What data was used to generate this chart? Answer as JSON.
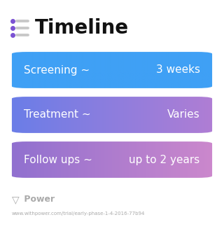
{
  "title": "Timeline",
  "title_fontsize": 20,
  "title_fontweight": "bold",
  "background_color": "#ffffff",
  "icon_line_color": "#7b52d3",
  "icon_bar_color": "#c8c8c8",
  "rows": [
    {
      "label": "Screening ~",
      "value": "3 weeks",
      "color_left": "#3fa0f5",
      "color_right": "#3fa0f5"
    },
    {
      "label": "Treatment ~",
      "value": "Varies",
      "color_left": "#6a7de8",
      "color_right": "#b07ed4"
    },
    {
      "label": "Follow ups ~",
      "value": "up to 2 years",
      "color_left": "#9070d0",
      "color_right": "#cc88cc"
    }
  ],
  "footer_logo_text": " Power",
  "footer_url": "www.withpower.com/trial/early-phase-1-4-2016-77b94",
  "footer_color": "#aaaaaa",
  "label_fontsize": 11,
  "value_fontsize": 11
}
